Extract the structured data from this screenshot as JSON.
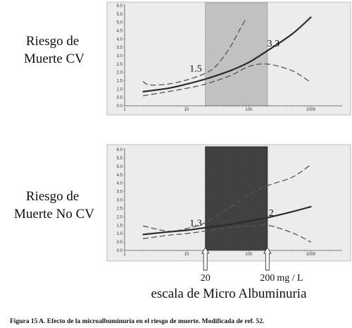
{
  "chart_data": [
    {
      "type": "line",
      "title": "",
      "ylabel": "Riesgo de\nMuerte CV",
      "x_scale": "log",
      "xlim": [
        1,
        2000
      ],
      "ylim": [
        0,
        6
      ],
      "grid": false,
      "x_tick_labels": [
        "1",
        "10",
        "100",
        "1000"
      ],
      "y_tick_labels": [
        "0.0",
        "0.5",
        "1.0",
        "1.5",
        "2.0",
        "2.5",
        "3.0",
        "3.5",
        "4.0",
        "4.5",
        "5.0",
        "5.5",
        "6.0"
      ],
      "shaded_range": [
        20,
        200
      ],
      "shading": "light",
      "series": [
        {
          "style": "solid",
          "x": [
            2,
            5,
            10,
            20,
            50,
            100,
            200,
            500,
            1000
          ],
          "y": [
            0.85,
            1.05,
            1.3,
            1.6,
            2.1,
            2.6,
            3.3,
            4.3,
            5.3
          ]
        },
        {
          "style": "dashed",
          "x": [
            2,
            2.5,
            5,
            10,
            20,
            30,
            50,
            70,
            90
          ],
          "y": [
            1.45,
            1.25,
            1.3,
            1.55,
            1.95,
            2.4,
            3.5,
            4.5,
            5.2
          ]
        },
        {
          "style": "dashed",
          "x": [
            2,
            5,
            10,
            20,
            50,
            100,
            200,
            500,
            1000
          ],
          "y": [
            0.6,
            0.85,
            1.05,
            1.3,
            1.8,
            2.35,
            2.5,
            2.1,
            1.4
          ]
        }
      ],
      "annotations": [
        {
          "text": "1.5",
          "x": 14,
          "y": 2.05
        },
        {
          "text": "3.3",
          "x": 250,
          "y": 3.55
        }
      ]
    },
    {
      "type": "line",
      "title": "",
      "ylabel": "Riesgo de\nMuerte No CV",
      "x_scale": "log",
      "xlim": [
        1,
        2000
      ],
      "ylim": [
        0,
        6
      ],
      "grid": false,
      "x_tick_labels": [
        "1",
        "10",
        "100",
        "1000"
      ],
      "y_tick_labels": [
        "0.0",
        "0.5",
        "1.0",
        "1.5",
        "2.0",
        "2.5",
        "3.0",
        "3.5",
        "4.0",
        "4.5",
        "5.0",
        "5.5",
        "6.0"
      ],
      "shaded_range": [
        20,
        200
      ],
      "shading": "dark",
      "series": [
        {
          "style": "solid",
          "x": [
            2,
            5,
            10,
            20,
            50,
            100,
            200,
            500,
            1000
          ],
          "y": [
            0.95,
            1.1,
            1.2,
            1.35,
            1.55,
            1.75,
            1.95,
            2.3,
            2.6
          ]
        },
        {
          "style": "dashed",
          "x": [
            2,
            5,
            10,
            20,
            50,
            100,
            200,
            500,
            1000
          ],
          "y": [
            1.45,
            1.15,
            1.3,
            1.65,
            2.55,
            3.3,
            3.85,
            4.35,
            5.1
          ]
        },
        {
          "style": "dashed",
          "x": [
            2,
            5,
            10,
            20,
            50,
            100,
            200,
            500,
            1000
          ],
          "y": [
            0.7,
            0.9,
            1.0,
            1.15,
            1.35,
            1.45,
            1.5,
            1.05,
            0.5
          ]
        }
      ],
      "annotations": [
        {
          "text": "1.3",
          "x": 14,
          "y": 1.45
        },
        {
          "text": "2",
          "x": 230,
          "y": 2.05
        }
      ]
    }
  ],
  "x_markers": [
    {
      "value": 20,
      "label": "20"
    },
    {
      "value": 200,
      "label": "200"
    }
  ],
  "x_unit": "mg / L",
  "x_title": "escala de Micro Albuminuria",
  "caption": "Figura 15 A. Efecto de la microalbuminuria en el riesgo de muerte. Modificada de ref. 52."
}
